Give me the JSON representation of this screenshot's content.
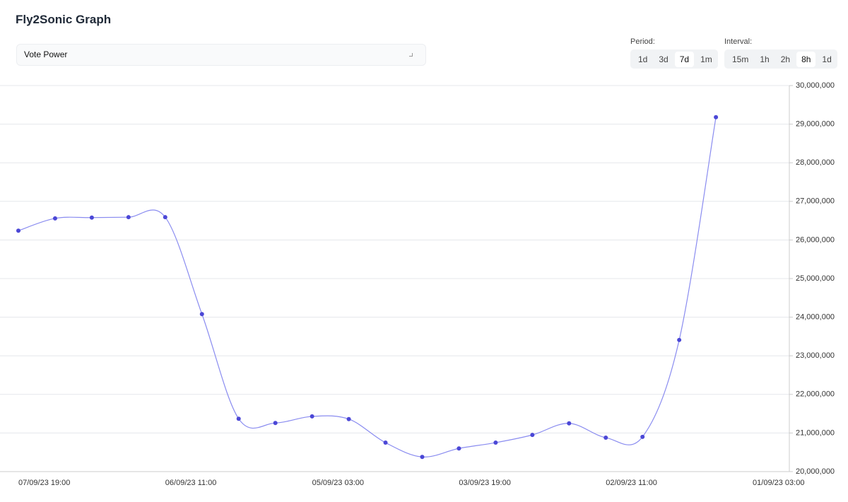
{
  "header": {
    "title": "Fly2Sonic Graph"
  },
  "selector": {
    "value": "Vote Power"
  },
  "period": {
    "label": "Period:",
    "options": [
      "1d",
      "3d",
      "7d",
      "1m"
    ],
    "active": "7d"
  },
  "interval": {
    "label": "Interval:",
    "options": [
      "15m",
      "1h",
      "2h",
      "8h",
      "1d"
    ],
    "active": "8h"
  },
  "chart_data": {
    "type": "line",
    "categories": [
      "07/09/23 19:00",
      null,
      null,
      null,
      "06/09/23 11:00",
      null,
      null,
      null,
      "05/09/23 03:00",
      null,
      null,
      null,
      "03/09/23 19:00",
      null,
      null,
      null,
      "02/09/23 11:00",
      null,
      null,
      null,
      "01/09/23 03:00"
    ],
    "series": [
      {
        "name": "Vote Power",
        "color": "#8a8cf0",
        "marker_color": "#4b47d6",
        "values": [
          26240000,
          26560000,
          26580000,
          26590000,
          26590000,
          24080000,
          21370000,
          21260000,
          21430000,
          21360000,
          20750000,
          20380000,
          20600000,
          20750000,
          20950000,
          21250000,
          20880000,
          20900000,
          23410000,
          29180000,
          null
        ]
      }
    ],
    "ylim": [
      20000000,
      30000000
    ],
    "yticks": [
      {
        "value": 20000000,
        "label": "20,000,000"
      },
      {
        "value": 21000000,
        "label": "21,000,000"
      },
      {
        "value": 22000000,
        "label": "22,000,000"
      },
      {
        "value": 23000000,
        "label": "23,000,000"
      },
      {
        "value": 24000000,
        "label": "24,000,000"
      },
      {
        "value": 25000000,
        "label": "25,000,000"
      },
      {
        "value": 26000000,
        "label": "26,000,000"
      },
      {
        "value": 27000000,
        "label": "27,000,000"
      },
      {
        "value": 28000000,
        "label": "28,000,000"
      },
      {
        "value": 29000000,
        "label": "29,000,000"
      },
      {
        "value": 30000000,
        "label": "30,000,000"
      }
    ],
    "grid": true,
    "smooth": true
  }
}
